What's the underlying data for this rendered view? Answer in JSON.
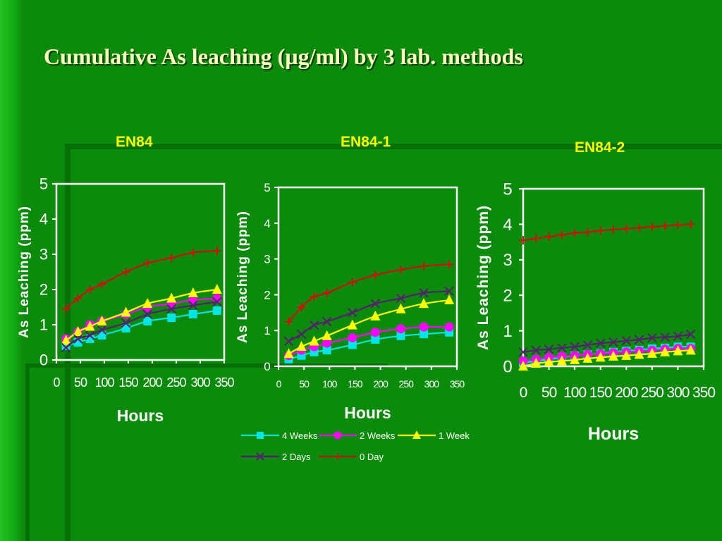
{
  "title": "Cumulative As leaching (µg/ml) by 3 lab. methods",
  "colors": {
    "background": "#0b8a0b",
    "title": "#ffffc0",
    "chart_title": "#ffff00",
    "axis": "#ffffff",
    "4 Weeks": "#00e5e5",
    "2 Weeks": "#ff00ff",
    "1 Week": "#ffff00",
    "2 Days": "#55206e",
    "0 Day": "#cc1111"
  },
  "legend": [
    {
      "name": "4 Weeks",
      "marker": "square"
    },
    {
      "name": "2 Weeks",
      "marker": "circle"
    },
    {
      "name": "1 Week",
      "marker": "triangle"
    },
    {
      "name": "2 Days",
      "marker": "x"
    },
    {
      "name": "0 Day",
      "marker": "plus"
    }
  ],
  "chart_data": [
    {
      "type": "line",
      "title": "EN84",
      "xlabel": "Hours",
      "ylabel": "As Leaching (ppm)",
      "xlim": [
        0,
        350
      ],
      "ylim": [
        0,
        5
      ],
      "xticks": [
        0,
        50,
        100,
        150,
        200,
        250,
        300,
        350
      ],
      "yticks": [
        0,
        1,
        2,
        3,
        4,
        5
      ],
      "series": [
        {
          "name": "4 Weeks",
          "x": [
            20,
            45,
            70,
            95,
            145,
            190,
            240,
            285,
            335
          ],
          "y": [
            0.4,
            0.5,
            0.6,
            0.7,
            0.9,
            1.1,
            1.2,
            1.3,
            1.4
          ]
        },
        {
          "name": "2 Weeks",
          "x": [
            20,
            45,
            70,
            95,
            145,
            190,
            240,
            285,
            335
          ],
          "y": [
            0.6,
            0.8,
            1.0,
            1.1,
            1.3,
            1.5,
            1.6,
            1.7,
            1.75
          ]
        },
        {
          "name": "1 Week",
          "x": [
            20,
            45,
            70,
            95,
            145,
            190,
            240,
            285,
            335
          ],
          "y": [
            0.55,
            0.8,
            0.95,
            1.1,
            1.35,
            1.6,
            1.75,
            1.9,
            2.0
          ]
        },
        {
          "name": "2 Days",
          "x": [
            20,
            45,
            70,
            95,
            145,
            190,
            240,
            285,
            335
          ],
          "y": [
            0.35,
            0.6,
            0.7,
            0.85,
            1.05,
            1.3,
            1.45,
            1.55,
            1.65
          ]
        },
        {
          "name": "0 Day",
          "x": [
            20,
            45,
            70,
            95,
            145,
            190,
            240,
            285,
            335
          ],
          "y": [
            1.45,
            1.75,
            2.0,
            2.15,
            2.5,
            2.75,
            2.9,
            3.05,
            3.1
          ]
        }
      ]
    },
    {
      "type": "line",
      "title": "EN84-1",
      "xlabel": "Hours",
      "ylabel": "As Leaching (ppm)",
      "xlim": [
        0,
        350
      ],
      "ylim": [
        0,
        5
      ],
      "xticks": [
        0,
        50,
        100,
        150,
        200,
        250,
        300,
        350
      ],
      "yticks": [
        0,
        1,
        2,
        3,
        4,
        5
      ],
      "series": [
        {
          "name": "4 Weeks",
          "x": [
            20,
            45,
            70,
            95,
            145,
            190,
            240,
            285,
            335
          ],
          "y": [
            0.2,
            0.3,
            0.4,
            0.45,
            0.6,
            0.75,
            0.85,
            0.9,
            0.95
          ]
        },
        {
          "name": "2 Weeks",
          "x": [
            20,
            45,
            70,
            95,
            145,
            190,
            240,
            285,
            335
          ],
          "y": [
            0.3,
            0.45,
            0.55,
            0.65,
            0.8,
            0.95,
            1.05,
            1.1,
            1.1
          ]
        },
        {
          "name": "1 Week",
          "x": [
            20,
            45,
            70,
            95,
            145,
            190,
            240,
            285,
            335
          ],
          "y": [
            0.35,
            0.55,
            0.7,
            0.85,
            1.15,
            1.4,
            1.6,
            1.75,
            1.85
          ]
        },
        {
          "name": "2 Days",
          "x": [
            20,
            45,
            70,
            95,
            145,
            190,
            240,
            285,
            335
          ],
          "y": [
            0.7,
            0.9,
            1.15,
            1.25,
            1.5,
            1.75,
            1.9,
            2.05,
            2.1
          ]
        },
        {
          "name": "0 Day",
          "x": [
            20,
            45,
            70,
            95,
            145,
            190,
            240,
            285,
            335
          ],
          "y": [
            1.25,
            1.65,
            1.95,
            2.05,
            2.35,
            2.55,
            2.7,
            2.8,
            2.85
          ]
        }
      ]
    },
    {
      "type": "line",
      "title": "EN84-2",
      "xlabel": "Hours",
      "ylabel": "As Leaching (ppm)",
      "xlim": [
        0,
        350
      ],
      "ylim": [
        0,
        5
      ],
      "xticks": [
        0,
        50,
        100,
        150,
        200,
        250,
        300,
        350
      ],
      "yticks": [
        0,
        1,
        2,
        3,
        4,
        5
      ],
      "series": [
        {
          "name": "4 Weeks",
          "x": [
            0,
            25,
            50,
            75,
            100,
            125,
            150,
            175,
            200,
            225,
            250,
            275,
            300,
            325
          ],
          "y": [
            0.1,
            0.15,
            0.2,
            0.25,
            0.3,
            0.33,
            0.36,
            0.4,
            0.43,
            0.46,
            0.5,
            0.52,
            0.55,
            0.55
          ]
        },
        {
          "name": "2 Weeks",
          "x": [
            0,
            25,
            50,
            75,
            100,
            125,
            150,
            175,
            200,
            225,
            250,
            275,
            300,
            325
          ],
          "y": [
            0.15,
            0.2,
            0.25,
            0.28,
            0.3,
            0.33,
            0.35,
            0.38,
            0.4,
            0.43,
            0.45,
            0.48,
            0.5,
            0.5
          ]
        },
        {
          "name": "1 Week",
          "x": [
            0,
            25,
            50,
            75,
            100,
            125,
            150,
            175,
            200,
            225,
            250,
            275,
            300,
            325
          ],
          "y": [
            0.0,
            0.08,
            0.12,
            0.15,
            0.18,
            0.22,
            0.25,
            0.28,
            0.3,
            0.33,
            0.36,
            0.4,
            0.43,
            0.45
          ]
        },
        {
          "name": "2 Days",
          "x": [
            0,
            25,
            50,
            75,
            100,
            125,
            150,
            175,
            200,
            225,
            250,
            275,
            300,
            325
          ],
          "y": [
            0.4,
            0.45,
            0.48,
            0.52,
            0.55,
            0.6,
            0.65,
            0.68,
            0.72,
            0.75,
            0.8,
            0.82,
            0.85,
            0.9
          ]
        },
        {
          "name": "0 Day",
          "x": [
            0,
            25,
            50,
            75,
            100,
            125,
            150,
            175,
            200,
            225,
            250,
            275,
            300,
            325
          ],
          "y": [
            3.55,
            3.6,
            3.65,
            3.7,
            3.75,
            3.78,
            3.82,
            3.85,
            3.88,
            3.9,
            3.93,
            3.95,
            3.98,
            4.0
          ]
        }
      ]
    }
  ]
}
